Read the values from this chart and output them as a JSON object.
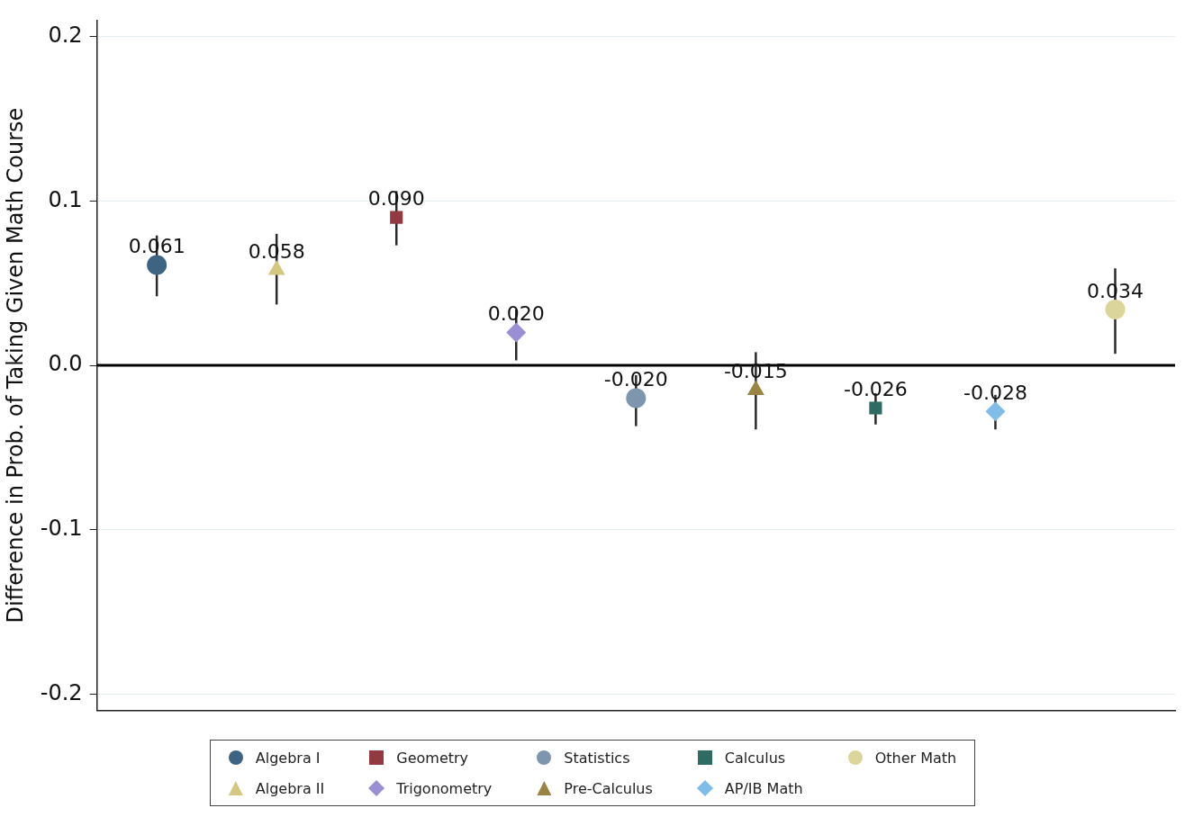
{
  "chart_data": {
    "type": "scatter",
    "ylabel": "Difference in Prob. of Taking Given Math Course",
    "categories": [
      null,
      null,
      null,
      null,
      null,
      null,
      null,
      null,
      null
    ],
    "ylim": [
      -0.21,
      0.21
    ],
    "yticks": [
      -0.2,
      -0.1,
      {
        "value": 0,
        "label": "0.0"
      },
      0.1,
      0.2
    ],
    "grid": "y",
    "legend": "bottom",
    "ref_lines": [
      {
        "axis": "y",
        "value": 0,
        "color": "#000000"
      }
    ],
    "series": [
      {
        "name": "Algebra I",
        "color": "#3e6483",
        "marker": "circle",
        "values": [
          0.061,
          null,
          null,
          null,
          null,
          null,
          null,
          null,
          null
        ],
        "errors": [
          [
            0.042,
            0.079
          ],
          null,
          null,
          null,
          null,
          null,
          null,
          null,
          null
        ],
        "value_labels": [
          "0.061",
          null,
          null,
          null,
          null,
          null,
          null,
          null,
          null
        ]
      },
      {
        "name": "Algebra II",
        "color": "#d4c77f",
        "marker": "triangle",
        "values": [
          null,
          0.058,
          null,
          null,
          null,
          null,
          null,
          null,
          null
        ],
        "errors": [
          null,
          [
            0.037,
            0.08
          ],
          null,
          null,
          null,
          null,
          null,
          null,
          null
        ],
        "value_labels": [
          null,
          "0.058",
          null,
          null,
          null,
          null,
          null,
          null,
          null
        ]
      },
      {
        "name": "Geometry",
        "color": "#913a40",
        "marker": "square",
        "values": [
          null,
          null,
          0.09,
          null,
          null,
          null,
          null,
          null,
          null
        ],
        "errors": [
          null,
          null,
          [
            0.073,
            0.106
          ],
          null,
          null,
          null,
          null,
          null,
          null
        ],
        "value_labels": [
          null,
          null,
          "0.090",
          null,
          null,
          null,
          null,
          null,
          null
        ]
      },
      {
        "name": "Trigonometry",
        "color": "#9b8fd4",
        "marker": "diamond",
        "values": [
          null,
          null,
          null,
          0.02,
          null,
          null,
          null,
          null,
          null
        ],
        "errors": [
          null,
          null,
          null,
          [
            0.003,
            0.034
          ],
          null,
          null,
          null,
          null,
          null
        ],
        "value_labels": [
          null,
          null,
          null,
          "0.020",
          null,
          null,
          null,
          null,
          null
        ]
      },
      {
        "name": "Statistics",
        "color": "#7d96ae",
        "marker": "circle",
        "values": [
          null,
          null,
          null,
          null,
          -0.02,
          null,
          null,
          null,
          null
        ],
        "errors": [
          null,
          null,
          null,
          null,
          [
            -0.037,
            -0.006
          ],
          null,
          null,
          null,
          null
        ],
        "value_labels": [
          null,
          null,
          null,
          null,
          "-0.020",
          null,
          null,
          null,
          null
        ]
      },
      {
        "name": "Pre-Calculus",
        "color": "#9a8443",
        "marker": "triangle",
        "values": [
          null,
          null,
          null,
          null,
          null,
          -0.015,
          null,
          null,
          null
        ],
        "errors": [
          null,
          null,
          null,
          null,
          null,
          [
            -0.039,
            0.008
          ],
          null,
          null,
          null
        ],
        "value_labels": [
          null,
          null,
          null,
          null,
          null,
          "-0.015",
          null,
          null,
          null
        ]
      },
      {
        "name": "Calculus",
        "color": "#2e6b62",
        "marker": "square",
        "values": [
          null,
          null,
          null,
          null,
          null,
          null,
          -0.026,
          null,
          null
        ],
        "errors": [
          null,
          null,
          null,
          null,
          null,
          null,
          [
            -0.036,
            -0.017
          ],
          null,
          null
        ],
        "value_labels": [
          null,
          null,
          null,
          null,
          null,
          null,
          "-0.026",
          null,
          null
        ]
      },
      {
        "name": "AP/IB Math",
        "color": "#7fbde8",
        "marker": "diamond",
        "values": [
          null,
          null,
          null,
          null,
          null,
          null,
          null,
          -0.028,
          null
        ],
        "errors": [
          null,
          null,
          null,
          null,
          null,
          null,
          null,
          [
            -0.039,
            -0.018
          ],
          null
        ],
        "value_labels": [
          null,
          null,
          null,
          null,
          null,
          null,
          null,
          "-0.028",
          null
        ]
      },
      {
        "name": "Other Math",
        "color": "#dcd59b",
        "marker": "circle",
        "values": [
          null,
          null,
          null,
          null,
          null,
          null,
          null,
          null,
          0.034
        ],
        "errors": [
          null,
          null,
          null,
          null,
          null,
          null,
          null,
          null,
          [
            0.007,
            0.059
          ]
        ],
        "value_labels": [
          null,
          null,
          null,
          null,
          null,
          null,
          null,
          null,
          "0.034"
        ]
      }
    ]
  }
}
